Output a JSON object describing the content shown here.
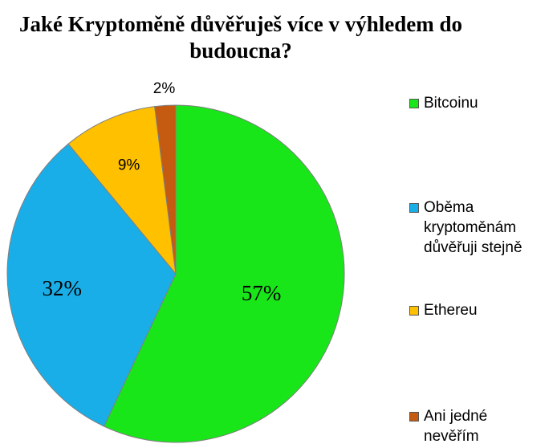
{
  "chart_data": {
    "type": "pie",
    "title": "Jaké Kryptoměně důvěřuješ více v výhledem do budoucna?",
    "categories": [
      "Bitcoinu",
      "Oběma kryptoměnám důvěřuji stejně",
      "Ethereu",
      "Ani jedné nevěřím"
    ],
    "values": [
      57,
      32,
      9,
      2
    ],
    "data_labels": [
      "57%",
      "32%",
      "9%",
      "2%"
    ],
    "colors": [
      "#19E619",
      "#1AAEE8",
      "#FFC000",
      "#C55A11"
    ],
    "legend": {
      "placement": "right",
      "items": [
        {
          "lines": [
            "Bitcoinu"
          ]
        },
        {
          "lines": [
            "Oběma",
            "kryptoměnám",
            "důvěřuji stejně"
          ]
        },
        {
          "lines": [
            "Ethereu"
          ]
        },
        {
          "lines": [
            "Ani jedné",
            "nevěřím"
          ]
        }
      ]
    }
  }
}
